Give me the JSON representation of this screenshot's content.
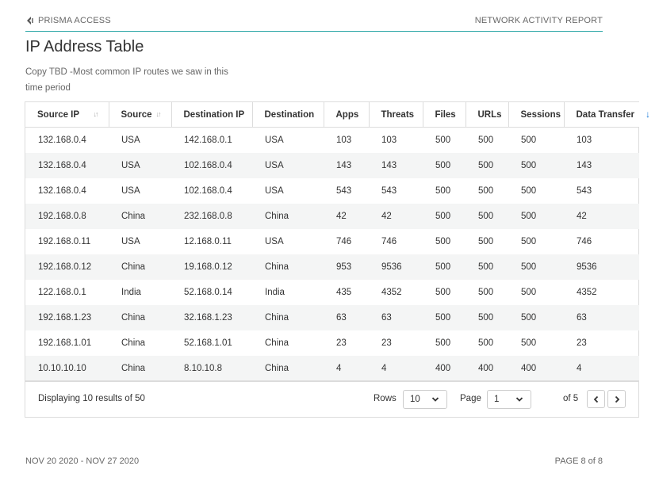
{
  "header": {
    "brand": "PRISMA ACCESS",
    "report": "NETWORK ACTIVITY REPORT"
  },
  "title": "IP Address Table",
  "description": "Copy TBD -Most common IP routes we saw in this time period",
  "table": {
    "columns": [
      "Source IP",
      "Source",
      "Destination IP",
      "Destination",
      "Apps",
      "Threats",
      "Files",
      "URLs",
      "Sessions",
      "Data Transfer"
    ],
    "rows": [
      [
        "132.168.0.4",
        "USA",
        "142.168.0.1",
        "USA",
        "103",
        "103",
        "500",
        "500",
        "500",
        "103"
      ],
      [
        "132.168.0.4",
        "USA",
        "102.168.0.4",
        "USA",
        "143",
        "143",
        "500",
        "500",
        "500",
        "143"
      ],
      [
        "132.168.0.4",
        "USA",
        "102.168.0.4",
        "USA",
        "543",
        "543",
        "500",
        "500",
        "500",
        "543"
      ],
      [
        "192.168.0.8",
        "China",
        "232.168.0.8",
        "China",
        "42",
        "42",
        "500",
        "500",
        "500",
        "42"
      ],
      [
        "192.168.0.11",
        "USA",
        "12.168.0.11",
        "USA",
        "746",
        "746",
        "500",
        "500",
        "500",
        "746"
      ],
      [
        "192.168.0.12",
        "China",
        "19.168.0.12",
        "China",
        "953",
        "9536",
        "500",
        "500",
        "500",
        "9536"
      ],
      [
        "122.168.0.1",
        "India",
        "52.168.0.14",
        "India",
        "435",
        "4352",
        "500",
        "500",
        "500",
        "4352"
      ],
      [
        "192.168.1.23",
        "China",
        "32.168.1.23",
        "China",
        "63",
        "63",
        "500",
        "500",
        "500",
        "63"
      ],
      [
        "192.168.1.01",
        "China",
        "52.168.1.01",
        "China",
        "23",
        "23",
        "500",
        "500",
        "500",
        "23"
      ],
      [
        "10.10.10.10",
        "China",
        "8.10.10.8",
        "China",
        "4",
        "4",
        "400",
        "400",
        "400",
        "4"
      ]
    ]
  },
  "pagination": {
    "display_text": "Displaying 10 results of 50",
    "rows_label": "Rows",
    "rows_value": "10",
    "page_label": "Page",
    "page_value": "1",
    "of_text": "of 5"
  },
  "footer": {
    "date_range": "NOV 20 2020 - NOV 27 2020",
    "page": "PAGE 8 of 8"
  },
  "colors": {
    "accent_line": "#2fa7a7",
    "sort_active": "#1b7cd9",
    "row_stripe": "#f4f5f5"
  },
  "icons": {
    "brand": "prisma-logo-icon",
    "sort": "sort-icon",
    "sort_active": "sort-down-arrow-icon",
    "prev": "chevron-left-icon",
    "next": "chevron-right-icon",
    "dropdown": "chevron-down-icon"
  }
}
